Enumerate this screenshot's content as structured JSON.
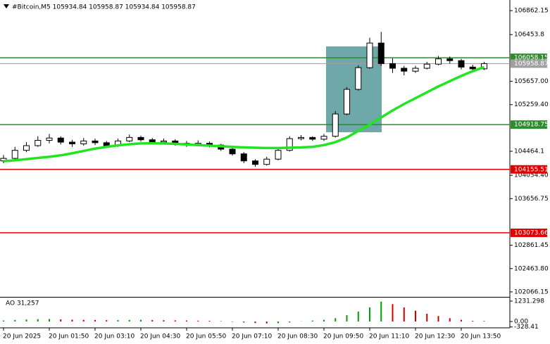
{
  "chart_data": {
    "type": "candlestick",
    "title": "#Bitcoin,M5  105934.84 105958.87 105934.84 105958.87",
    "categories": [
      "20 Jun 2025",
      null,
      null,
      null,
      "20 Jun 01:50",
      null,
      null,
      null,
      "20 Jun 03:10",
      null,
      null,
      null,
      "20 Jun 04:30",
      null,
      null,
      null,
      "20 Jun 05:50",
      null,
      null,
      null,
      "20 Jun 07:10",
      null,
      null,
      null,
      "20 Jun 08:30",
      null,
      null,
      null,
      "20 Jun 09:50",
      null,
      null,
      null,
      "20 Jun 11:10",
      null,
      null,
      null,
      "20 Jun 12:30",
      null,
      null,
      null,
      "20 Jun 13:50",
      null,
      null
    ],
    "open": [
      104300,
      104343,
      104480,
      104560,
      104650,
      104690,
      104620,
      104590,
      104640,
      104610,
      104560,
      104640,
      104700,
      104660,
      104620,
      104640,
      104600,
      104580,
      104600,
      104570,
      104500,
      104420,
      104300,
      104240,
      104330,
      104480,
      104680,
      104700,
      104670,
      104720,
      105100,
      105520,
      105890,
      106310,
      105960,
      105880,
      105830,
      105880,
      105950,
      106040,
      106010,
      105900,
      105870
    ],
    "high": [
      104400,
      104540,
      104620,
      104720,
      104760,
      104720,
      104660,
      104690,
      104680,
      104640,
      104680,
      104750,
      104730,
      104690,
      104680,
      104670,
      104640,
      104650,
      104630,
      104590,
      104530,
      104450,
      104330,
      104370,
      104510,
      104720,
      104740,
      104720,
      104760,
      105150,
      105560,
      105930,
      106400,
      106500,
      106050,
      105920,
      105920,
      105990,
      106090,
      106080,
      106040,
      105940,
      105990
    ],
    "low": [
      104260,
      104320,
      104450,
      104540,
      104600,
      104580,
      104540,
      104560,
      104570,
      104520,
      104540,
      104620,
      104630,
      104580,
      104590,
      104560,
      104540,
      104560,
      104530,
      104470,
      104390,
      104260,
      104200,
      104220,
      104310,
      104460,
      104650,
      104640,
      104640,
      104700,
      105080,
      105500,
      105870,
      105920,
      105800,
      105760,
      105800,
      105860,
      105930,
      105960,
      105860,
      105820,
      105850
    ],
    "close": [
      104343,
      104480,
      104560,
      104650,
      104690,
      104620,
      104590,
      104640,
      104610,
      104560,
      104640,
      104700,
      104660,
      104620,
      104640,
      104600,
      104580,
      104600,
      104570,
      104500,
      104420,
      104300,
      104240,
      104330,
      104480,
      104680,
      104700,
      104670,
      104720,
      105100,
      105520,
      105890,
      106310,
      105960,
      105880,
      105830,
      105880,
      105950,
      106040,
      106010,
      105900,
      105870,
      105958.87
    ],
    "up_color": "#ffffff",
    "down_color": "#000000",
    "ylim": [
      101981,
      107044
    ],
    "yticks": [
      106862.15,
      106453.8,
      {
        "value": 105657,
        "label": "105657.00"
      },
      {
        "value": 105259.4,
        "label": "105259.40"
      },
      104464.1,
      {
        "value": 104054.4,
        "label": "104054.40"
      },
      103656.75,
      102861.45,
      {
        "value": 102463.8,
        "label": "102463.80"
      },
      102066.15
    ],
    "moving_average": {
      "color": "#22e522",
      "values": [
        104295,
        104310,
        104330,
        104350,
        104370,
        104395,
        104430,
        104470,
        104510,
        104540,
        104565,
        104585,
        104598,
        104600,
        104598,
        104590,
        104580,
        104570,
        104560,
        104550,
        104540,
        104530,
        104525,
        104520,
        104520,
        104525,
        104530,
        104540,
        104570,
        104620,
        104700,
        104810,
        104920,
        105040,
        105160,
        105270,
        105370,
        105470,
        105570,
        105660,
        105750,
        105830,
        105900
      ]
    },
    "levels": [
      {
        "value": 106058.15,
        "color": "#2e8b2e"
      },
      {
        "value": 104918.75,
        "color": "#2e8b2e"
      },
      {
        "value": 104155.51,
        "color": "#e00000"
      },
      {
        "value": 103073.66,
        "color": "#e00000"
      }
    ],
    "current_price_color": "#a0a0a0",
    "indicator": {
      "title": "AO 31,257",
      "values": [
        60,
        90,
        120,
        140,
        150,
        130,
        110,
        100,
        90,
        80,
        85,
        95,
        100,
        90,
        80,
        70,
        60,
        50,
        40,
        20,
        -20,
        -60,
        -100,
        -120,
        -110,
        -60,
        10,
        60,
        100,
        200,
        380,
        600,
        850,
        1200,
        1050,
        850,
        650,
        470,
        330,
        200,
        100,
        40,
        31.257
      ],
      "up_color": "#00a000",
      "down_color": "#d00000",
      "ylim": [
        -382,
        1443
      ],
      "yticks": [
        1231.298,
        {
          "value": 0,
          "label": "0.00"
        },
        -328.41
      ]
    }
  }
}
